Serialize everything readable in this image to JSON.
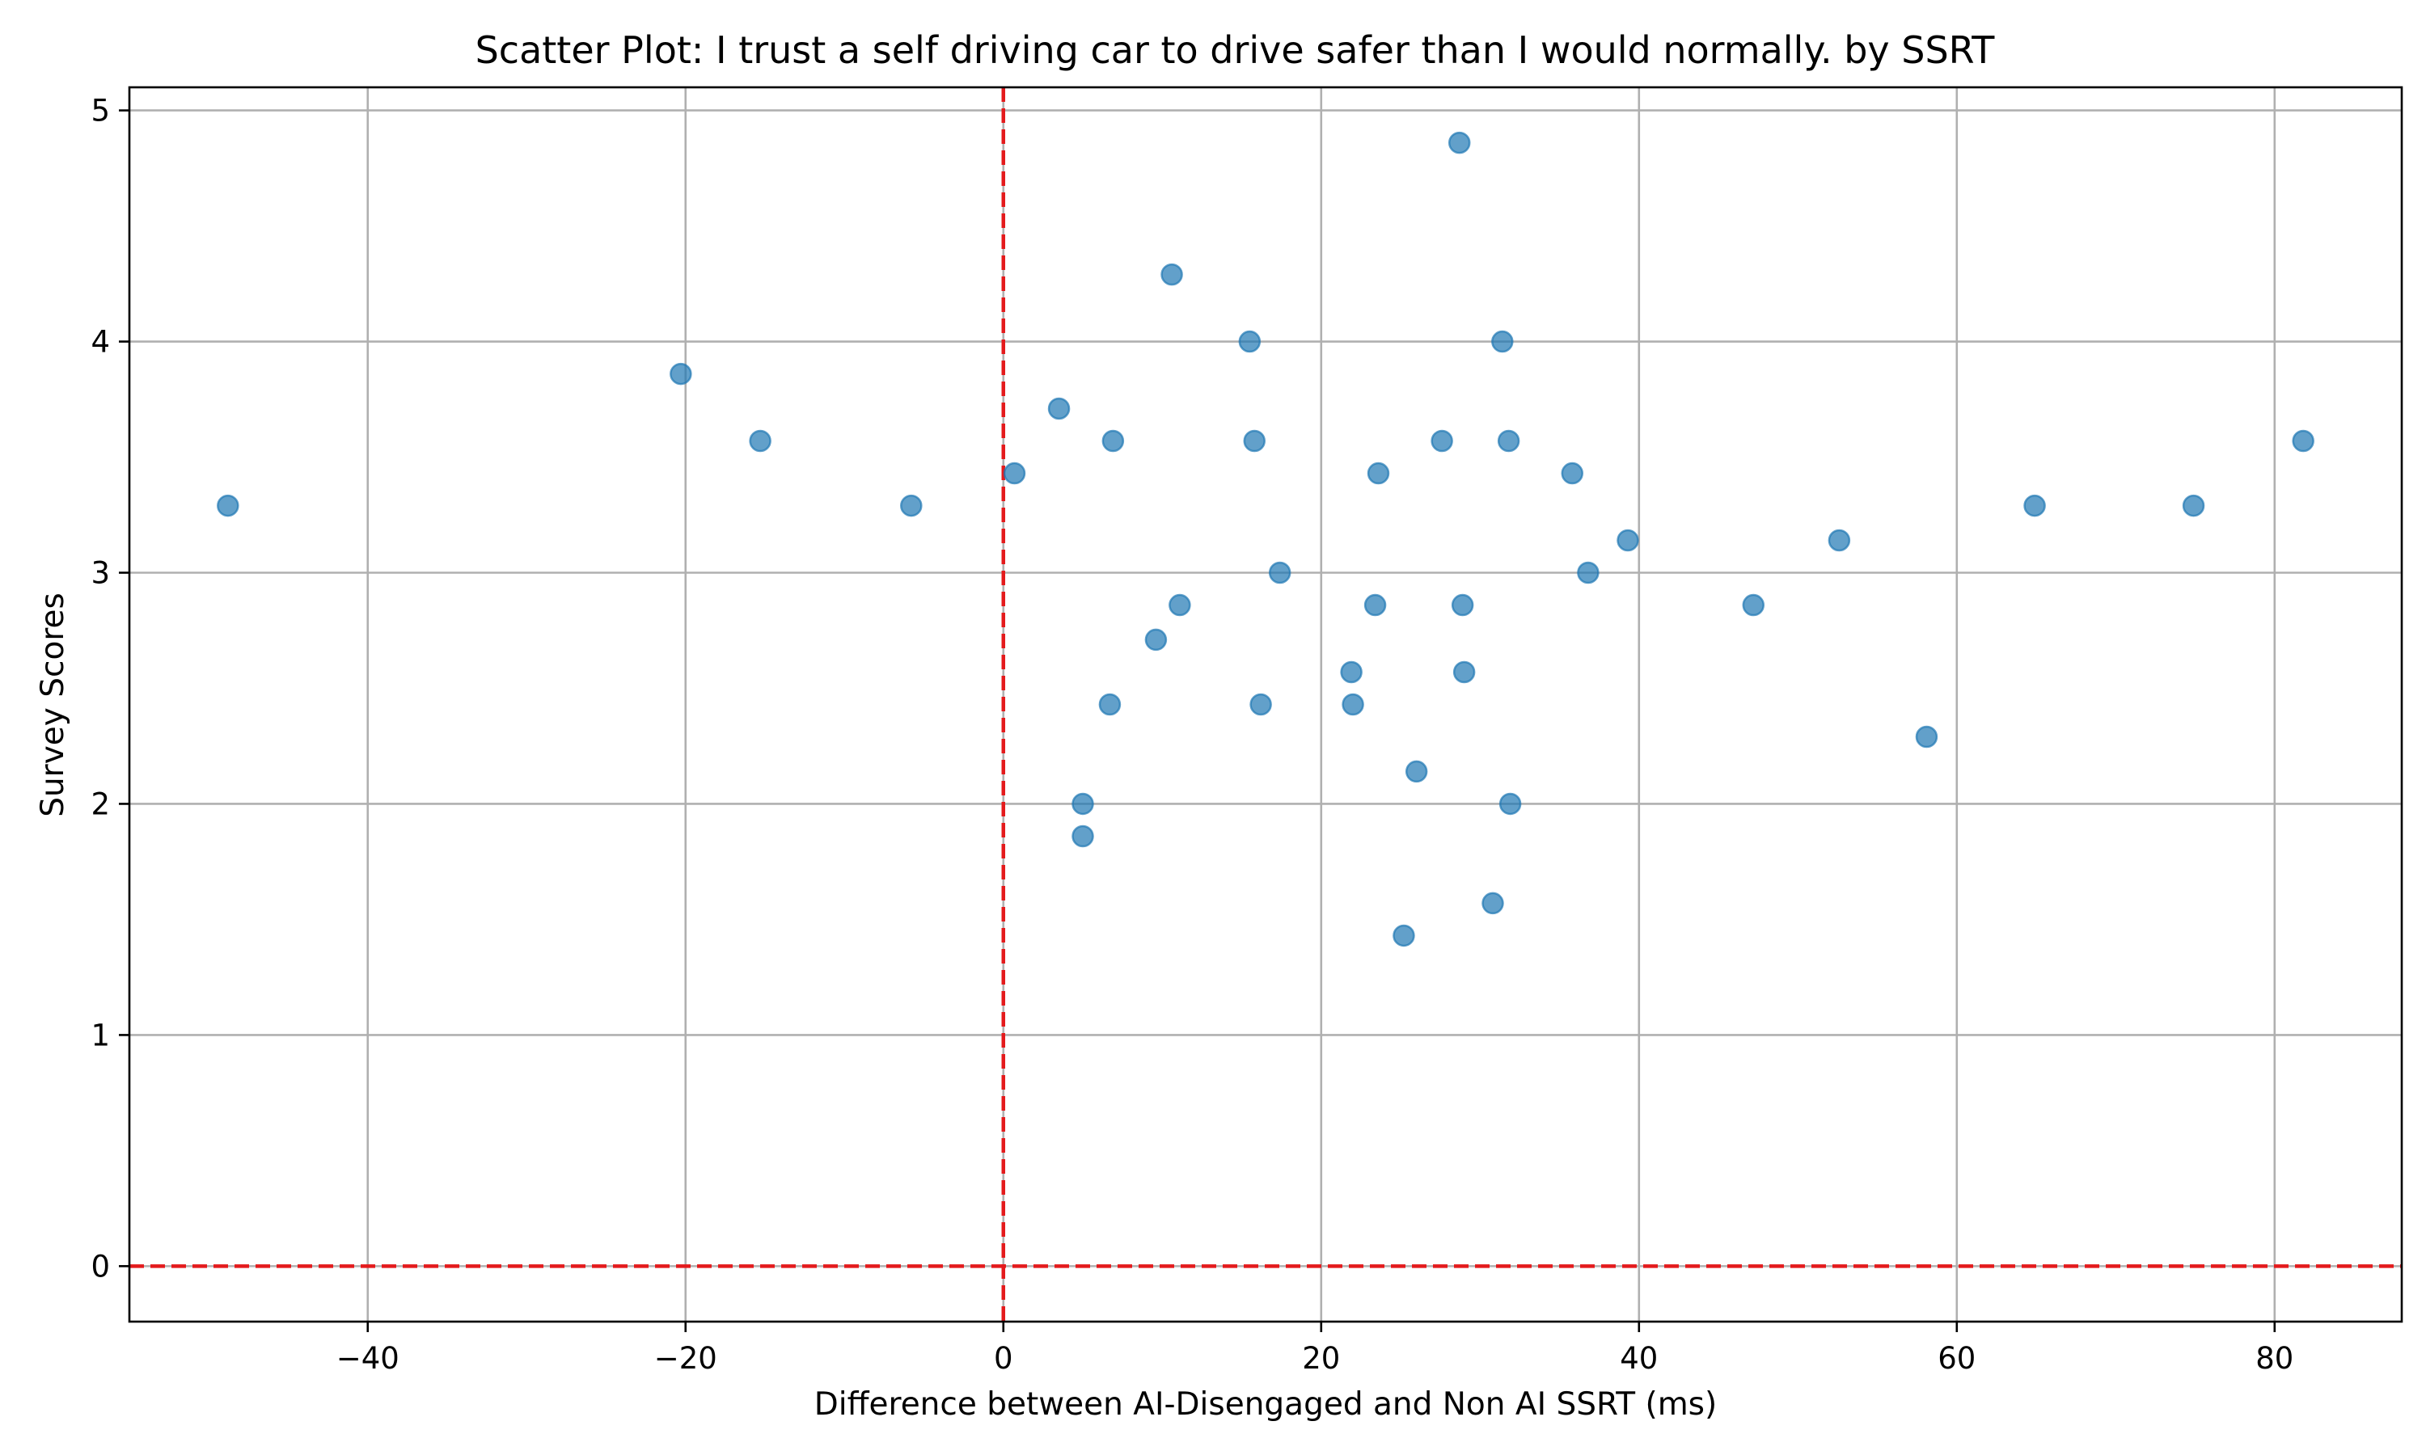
{
  "chart_data": {
    "type": "scatter",
    "title": "Scatter Plot: I trust a self driving car to drive safer than I would normally. by SSRT",
    "xlabel": "Difference between AI-Disengaged and Non AI SSRT (ms)",
    "ylabel": "Survey Scores",
    "xlim": [
      -55,
      88
    ],
    "ylim": [
      -0.24,
      5.1
    ],
    "xticks": [
      -40,
      -20,
      0,
      20,
      40,
      60,
      80
    ],
    "yticks": [
      0,
      1,
      2,
      3,
      4,
      5
    ],
    "xtick_labels": [
      "−40",
      "−20",
      "0",
      "20",
      "40",
      "60",
      "80"
    ],
    "ytick_labels": [
      "0",
      "1",
      "2",
      "3",
      "4",
      "5"
    ],
    "grid": true,
    "reference_lines": [
      {
        "axis": "x",
        "value": 0,
        "color": "#e41a1c",
        "style": "dashed"
      },
      {
        "axis": "y",
        "value": 0,
        "color": "#e41a1c",
        "style": "dashed"
      }
    ],
    "marker_color": "#1f77b4",
    "marker_alpha": 0.7,
    "points": [
      {
        "x": -48.8,
        "y": 3.29
      },
      {
        "x": -20.3,
        "y": 3.86
      },
      {
        "x": -15.3,
        "y": 3.57
      },
      {
        "x": -5.8,
        "y": 3.29
      },
      {
        "x": 0.7,
        "y": 3.43
      },
      {
        "x": 3.5,
        "y": 3.71
      },
      {
        "x": 6.9,
        "y": 3.57
      },
      {
        "x": 10.6,
        "y": 4.29
      },
      {
        "x": 15.5,
        "y": 4.0
      },
      {
        "x": 15.8,
        "y": 3.57
      },
      {
        "x": 28.7,
        "y": 4.86
      },
      {
        "x": 31.4,
        "y": 4.0
      },
      {
        "x": 27.6,
        "y": 3.57
      },
      {
        "x": 31.8,
        "y": 3.57
      },
      {
        "x": 23.6,
        "y": 3.43
      },
      {
        "x": 35.8,
        "y": 3.43
      },
      {
        "x": 39.3,
        "y": 3.14
      },
      {
        "x": 17.4,
        "y": 3.0
      },
      {
        "x": 36.8,
        "y": 3.0
      },
      {
        "x": 11.1,
        "y": 2.86
      },
      {
        "x": 23.4,
        "y": 2.86
      },
      {
        "x": 28.9,
        "y": 2.86
      },
      {
        "x": 47.2,
        "y": 2.86
      },
      {
        "x": 52.6,
        "y": 3.14
      },
      {
        "x": 64.9,
        "y": 3.29
      },
      {
        "x": 74.9,
        "y": 3.29
      },
      {
        "x": 81.8,
        "y": 3.57
      },
      {
        "x": 9.6,
        "y": 2.71
      },
      {
        "x": 21.9,
        "y": 2.57
      },
      {
        "x": 29.0,
        "y": 2.57
      },
      {
        "x": 6.7,
        "y": 2.43
      },
      {
        "x": 16.2,
        "y": 2.43
      },
      {
        "x": 22.0,
        "y": 2.43
      },
      {
        "x": 58.1,
        "y": 2.29
      },
      {
        "x": 26.0,
        "y": 2.14
      },
      {
        "x": 5.0,
        "y": 2.0
      },
      {
        "x": 31.9,
        "y": 2.0
      },
      {
        "x": 5.0,
        "y": 1.86
      },
      {
        "x": 30.8,
        "y": 1.57
      },
      {
        "x": 25.2,
        "y": 1.43
      }
    ]
  }
}
